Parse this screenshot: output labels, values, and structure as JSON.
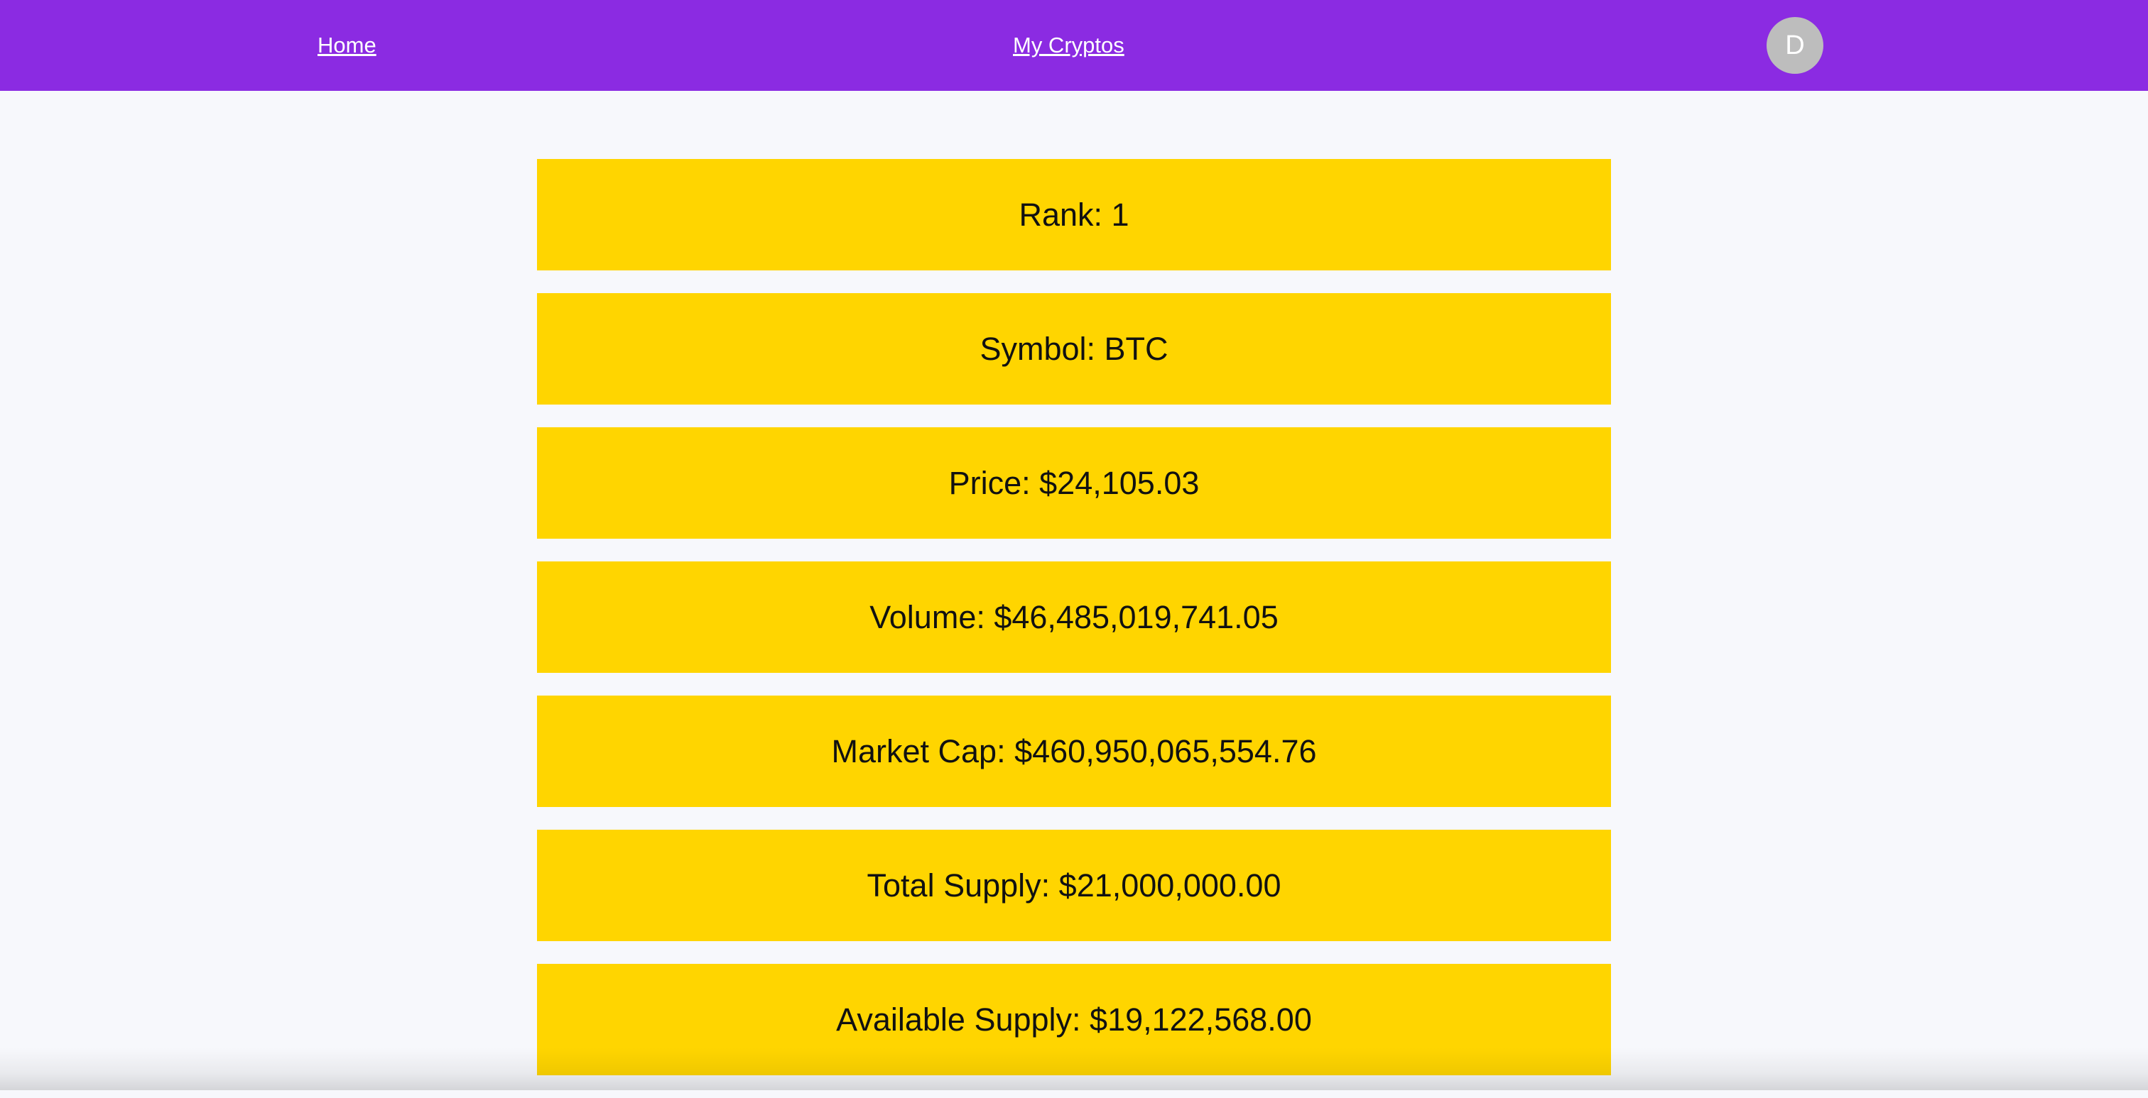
{
  "nav": {
    "home_label": "Home",
    "my_cryptos_label": "My Cryptos",
    "avatar_initial": "D"
  },
  "stats": [
    {
      "text": "Rank: 1"
    },
    {
      "text": "Symbol: BTC"
    },
    {
      "text": "Price: $24,105.03"
    },
    {
      "text": "Volume: $46,485,019,741.05"
    },
    {
      "text": "Market Cap: $460,950,065,554.76"
    },
    {
      "text": "Total Supply: $21,000,000.00"
    },
    {
      "text": "Available Supply: $19,122,568.00"
    }
  ],
  "colors": {
    "navbar": "#8b2be2",
    "card": "#ffd500",
    "background": "#f7f8fc",
    "avatar": "#bdbdbd"
  }
}
